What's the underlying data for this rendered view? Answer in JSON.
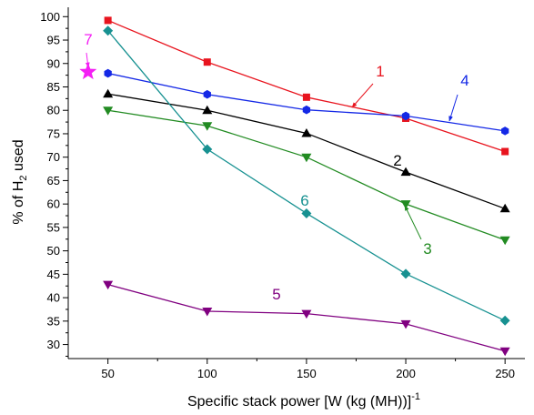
{
  "chart_data": {
    "type": "line",
    "xlabel": "Specific stack power [W (kg (MH))]",
    "xlabel_sup": "-1",
    "ylabel_prefix": "% of H",
    "ylabel_sub": "2",
    "ylabel_suffix": " used",
    "xlim": [
      30,
      260
    ],
    "ylim": [
      27,
      102
    ],
    "x_ticks": [
      50,
      100,
      150,
      200,
      250
    ],
    "y_ticks": [
      30,
      35,
      40,
      45,
      50,
      55,
      60,
      65,
      70,
      75,
      80,
      85,
      90,
      95,
      100
    ],
    "x": [
      50,
      100,
      150,
      200,
      250
    ],
    "grid": false,
    "series": [
      {
        "label": "1",
        "color": "#e8141e",
        "marker": "square",
        "values": [
          99.2,
          90.3,
          82.8,
          78.3,
          71.2
        ]
      },
      {
        "label": "2",
        "color": "#000000",
        "marker": "triangle-up",
        "values": [
          83.5,
          80.0,
          75.1,
          66.8,
          59.0
        ]
      },
      {
        "label": "3",
        "color": "#228b22",
        "marker": "triangle-down",
        "values": [
          80.0,
          76.7,
          70.0,
          60.0,
          52.3
        ]
      },
      {
        "label": "4",
        "color": "#1428e6",
        "marker": "hexagon",
        "values": [
          87.9,
          83.4,
          80.1,
          78.8,
          75.6
        ]
      },
      {
        "label": "5",
        "color": "#800080",
        "marker": "triangle-down",
        "values": [
          42.8,
          37.1,
          36.6,
          34.4,
          28.6
        ]
      },
      {
        "label": "6",
        "color": "#179191",
        "marker": "diamond",
        "values": [
          97.0,
          71.7,
          58.0,
          45.1,
          35.1
        ]
      }
    ],
    "point": {
      "label": "7",
      "color": "#f41ff4",
      "marker": "star",
      "x": 40,
      "y": 88.2
    }
  }
}
